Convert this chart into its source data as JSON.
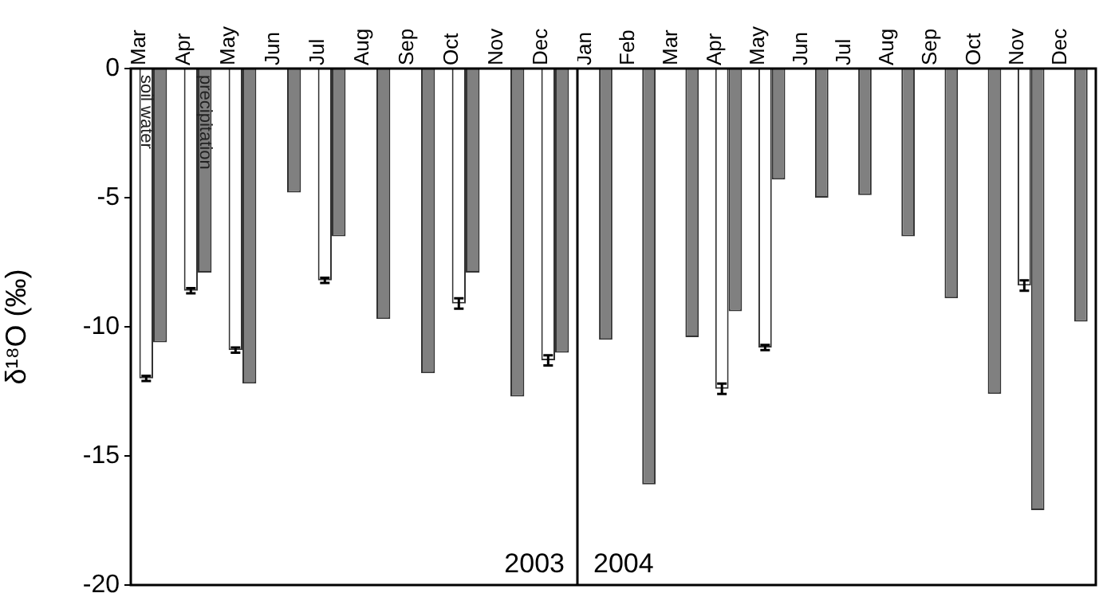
{
  "chart_data": [
    {
      "type": "bar",
      "ylabel": "δ¹⁸O (‰)",
      "categories": [
        "Mar",
        "Apr",
        "May",
        "Jun",
        "Jul",
        "Aug",
        "Sep",
        "Oct",
        "Nov",
        "Dec"
      ],
      "series": [
        {
          "name": "soil water",
          "color": "#ffffff",
          "values": [
            -12.0,
            -8.6,
            -10.9,
            null,
            -8.2,
            null,
            null,
            -9.1,
            null,
            -11.3
          ],
          "errors": [
            0.1,
            0.1,
            0.1,
            null,
            0.1,
            null,
            null,
            0.2,
            null,
            0.2
          ]
        },
        {
          "name": "precipitation",
          "color": "#808080",
          "values": [
            -10.6,
            -7.9,
            -12.2,
            -4.8,
            -6.5,
            -9.7,
            -11.8,
            -7.9,
            -12.7,
            -11.0
          ]
        }
      ],
      "ylim": [
        -20,
        0
      ],
      "yticks": [
        -20,
        -15,
        -10,
        -5,
        0
      ],
      "grid": false,
      "legend": false,
      "annotations": [
        "2003"
      ]
    },
    {
      "type": "bar",
      "categories": [
        "Jan",
        "Feb",
        "Mar",
        "Apr",
        "May",
        "Jun",
        "Jul",
        "Aug",
        "Sep",
        "Oct",
        "Nov",
        "Dec"
      ],
      "series": [
        {
          "color": "#ffffff",
          "values": [
            null,
            null,
            null,
            -12.4,
            -10.8,
            null,
            null,
            null,
            null,
            null,
            -8.4,
            null
          ],
          "errors": [
            null,
            null,
            null,
            0.2,
            0.1,
            null,
            null,
            null,
            null,
            null,
            0.2,
            null
          ]
        },
        {
          "color": "#808080",
          "values": [
            -10.5,
            -16.1,
            -10.4,
            -9.4,
            -4.3,
            -5.0,
            -4.9,
            -6.5,
            -8.9,
            -12.6,
            -17.1,
            -9.8
          ]
        }
      ],
      "ylim": [
        -20,
        0
      ],
      "yticks": [
        -20,
        -15,
        -10,
        -5,
        0
      ],
      "grid": false,
      "legend": false,
      "tick_labels": "x",
      "annotations": [
        "2004"
      ]
    }
  ]
}
